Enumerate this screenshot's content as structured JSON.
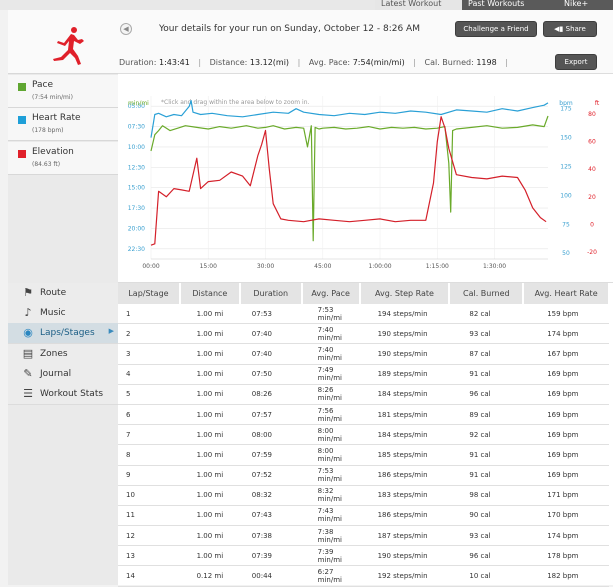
{
  "top_tabs": [
    "Latest Workout",
    "Past Workouts",
    "Nike+"
  ],
  "header": {
    "title": "Your details for your run on Sunday, October 12 - 8:26 AM",
    "challenge_label": "Challenge a Friend",
    "share_label": "Share",
    "export_label": "Export",
    "stats": {
      "duration_label": "Duration:",
      "duration": "1:43:41",
      "distance_label": "Distance:",
      "distance": "13.12(mi)",
      "pace_label": "Avg. Pace:",
      "pace": "7:54(min/mi)",
      "cal_label": "Cal. Burned:",
      "cal": "1198"
    }
  },
  "legend": [
    {
      "name": "Pace",
      "value": "(7:54 min/mi)",
      "color": "#5fa631"
    },
    {
      "name": "Heart Rate",
      "value": "(178 bpm)",
      "color": "#1e9fd8"
    },
    {
      "name": "Elevation",
      "value": "(84.63 ft)",
      "color": "#e0202a"
    }
  ],
  "nav": [
    {
      "label": "Route",
      "icon": "route-icon",
      "glyph": "⚑"
    },
    {
      "label": "Music",
      "icon": "music-note-icon",
      "glyph": "♪"
    },
    {
      "label": "Laps/Stages",
      "icon": "laps-icon",
      "glyph": "◉",
      "active": true
    },
    {
      "label": "Zones",
      "icon": "zones-icon",
      "glyph": "▤"
    },
    {
      "label": "Journal",
      "icon": "journal-icon",
      "glyph": "✎"
    },
    {
      "label": "Workout Stats",
      "icon": "stats-list-icon",
      "glyph": "☰"
    }
  ],
  "chart_data": {
    "type": "line",
    "hint": "*Click and drag within the area below to zoom in.",
    "left_unit": "min/mi",
    "right_units": [
      "bpm",
      "ft"
    ],
    "x_ticks": [
      "00:00",
      "15:00",
      "30:00",
      "45:00",
      "1:00:00",
      "1:15:00",
      "1:30:00"
    ],
    "xlim_minutes": [
      0,
      104
    ],
    "pace_ticks": [
      "05:00",
      "07:30",
      "10:00",
      "12:30",
      "15:00",
      "17:30",
      "20:00",
      "22:30"
    ],
    "pace_lim_minutes": [
      3.75,
      23.75
    ],
    "hr_ticks": [
      "175",
      "150",
      "125",
      "100",
      "75",
      "50"
    ],
    "hr_lim": [
      45,
      186
    ],
    "elev_ticks": [
      "80",
      "60",
      "40",
      "20",
      "0",
      "-20"
    ],
    "elev_lim": [
      -25,
      93
    ],
    "series": [
      {
        "name": "Pace",
        "color": "#6aaa2a",
        "axis": "pace",
        "x": [
          0,
          1,
          2,
          3,
          5,
          7,
          9,
          12,
          15,
          18,
          21,
          25,
          28,
          30,
          32,
          35,
          38,
          40,
          41,
          42,
          42.5,
          43,
          44,
          45,
          48,
          51,
          54,
          57,
          60,
          63,
          66,
          69,
          72,
          75,
          77,
          78,
          78.5,
          79,
          80,
          84,
          88,
          92,
          96,
          100,
          103,
          104
        ],
        "y": [
          10.5,
          8.5,
          8.0,
          7.4,
          8.0,
          7.7,
          7.4,
          7.6,
          7.8,
          7.5,
          7.7,
          7.4,
          7.7,
          7.6,
          7.4,
          7.8,
          7.6,
          7.7,
          10.0,
          7.4,
          21.5,
          7.6,
          7.8,
          7.7,
          7.6,
          7.8,
          7.7,
          7.5,
          7.8,
          7.6,
          7.7,
          7.6,
          7.8,
          7.7,
          7.5,
          12.0,
          18.0,
          8.0,
          7.8,
          7.6,
          7.4,
          7.7,
          7.6,
          7.3,
          7.5,
          6.2
        ]
      },
      {
        "name": "Heart Rate",
        "color": "#2aa0d6",
        "axis": "hr",
        "x": [
          0,
          1,
          2,
          4,
          6,
          8,
          10,
          10.5,
          11,
          13,
          16,
          20,
          24,
          28,
          32,
          36,
          38,
          40,
          44,
          48,
          52,
          56,
          60,
          64,
          68,
          72,
          76,
          80,
          84,
          88,
          92,
          96,
          100,
          103,
          104
        ],
        "y": [
          150,
          170,
          171,
          168,
          170,
          169,
          177,
          182,
          172,
          170,
          171,
          169,
          168,
          170,
          172,
          171,
          175,
          172,
          170,
          169,
          171,
          170,
          172,
          171,
          173,
          172,
          170,
          174,
          173,
          172,
          175,
          173,
          176,
          178,
          180
        ]
      },
      {
        "name": "Elevation",
        "color": "#d4202a",
        "axis": "elev",
        "x": [
          0,
          1,
          2,
          4,
          6,
          8,
          10,
          12,
          13,
          15,
          18,
          21,
          24,
          26,
          28,
          29,
          30,
          31,
          32,
          34,
          36,
          40,
          44,
          48,
          52,
          56,
          60,
          64,
          68,
          72,
          74,
          75,
          76,
          77,
          78,
          80,
          84,
          88,
          92,
          96,
          98,
          100,
          102,
          103.5
        ],
        "y": [
          -15,
          -14,
          24,
          20,
          26,
          25,
          24,
          48,
          26,
          31,
          32,
          38,
          35,
          28,
          50,
          58,
          68,
          40,
          15,
          4,
          3,
          2,
          4,
          3,
          2,
          3,
          4,
          2,
          3,
          3,
          30,
          60,
          78,
          70,
          55,
          36,
          34,
          33,
          35,
          34,
          25,
          12,
          5,
          2
        ]
      }
    ]
  },
  "laps": {
    "columns": [
      "Lap/Stage",
      "Distance",
      "Duration",
      "Avg. Pace",
      "Avg. Step Rate",
      "Cal. Burned",
      "Avg. Heart Rate"
    ],
    "rows": [
      [
        "1",
        "1.00 mi",
        "07:53",
        "7:53 min/mi",
        "194 steps/min",
        "82 cal",
        "159 bpm"
      ],
      [
        "2",
        "1.00 mi",
        "07:40",
        "7:40 min/mi",
        "190 steps/min",
        "93 cal",
        "174 bpm"
      ],
      [
        "3",
        "1.00 mi",
        "07:40",
        "7:40 min/mi",
        "190 steps/min",
        "87 cal",
        "167 bpm"
      ],
      [
        "4",
        "1.00 mi",
        "07:50",
        "7:49 min/mi",
        "189 steps/min",
        "91 cal",
        "169 bpm"
      ],
      [
        "5",
        "1.00 mi",
        "08:26",
        "8:26 min/mi",
        "184 steps/min",
        "96 cal",
        "169 bpm"
      ],
      [
        "6",
        "1.00 mi",
        "07:57",
        "7:56 min/mi",
        "181 steps/min",
        "89 cal",
        "169 bpm"
      ],
      [
        "7",
        "1.00 mi",
        "08:00",
        "8:00 min/mi",
        "184 steps/min",
        "92 cal",
        "169 bpm"
      ],
      [
        "8",
        "1.00 mi",
        "07:59",
        "8:00 min/mi",
        "185 steps/min",
        "91 cal",
        "169 bpm"
      ],
      [
        "9",
        "1.00 mi",
        "07:52",
        "7:53 min/mi",
        "186 steps/min",
        "91 cal",
        "169 bpm"
      ],
      [
        "10",
        "1.00 mi",
        "08:32",
        "8:32 min/mi",
        "183 steps/min",
        "98 cal",
        "171 bpm"
      ],
      [
        "11",
        "1.00 mi",
        "07:43",
        "7:43 min/mi",
        "186 steps/min",
        "90 cal",
        "170 bpm"
      ],
      [
        "12",
        "1.00 mi",
        "07:38",
        "7:38 min/mi",
        "187 steps/min",
        "93 cal",
        "174 bpm"
      ],
      [
        "13",
        "1.00 mi",
        "07:39",
        "7:39 min/mi",
        "190 steps/min",
        "96 cal",
        "178 bpm"
      ],
      [
        "14",
        "0.12 mi",
        "00:44",
        "6:27 min/mi",
        "192 steps/min",
        "10 cal",
        "182 bpm"
      ]
    ]
  }
}
